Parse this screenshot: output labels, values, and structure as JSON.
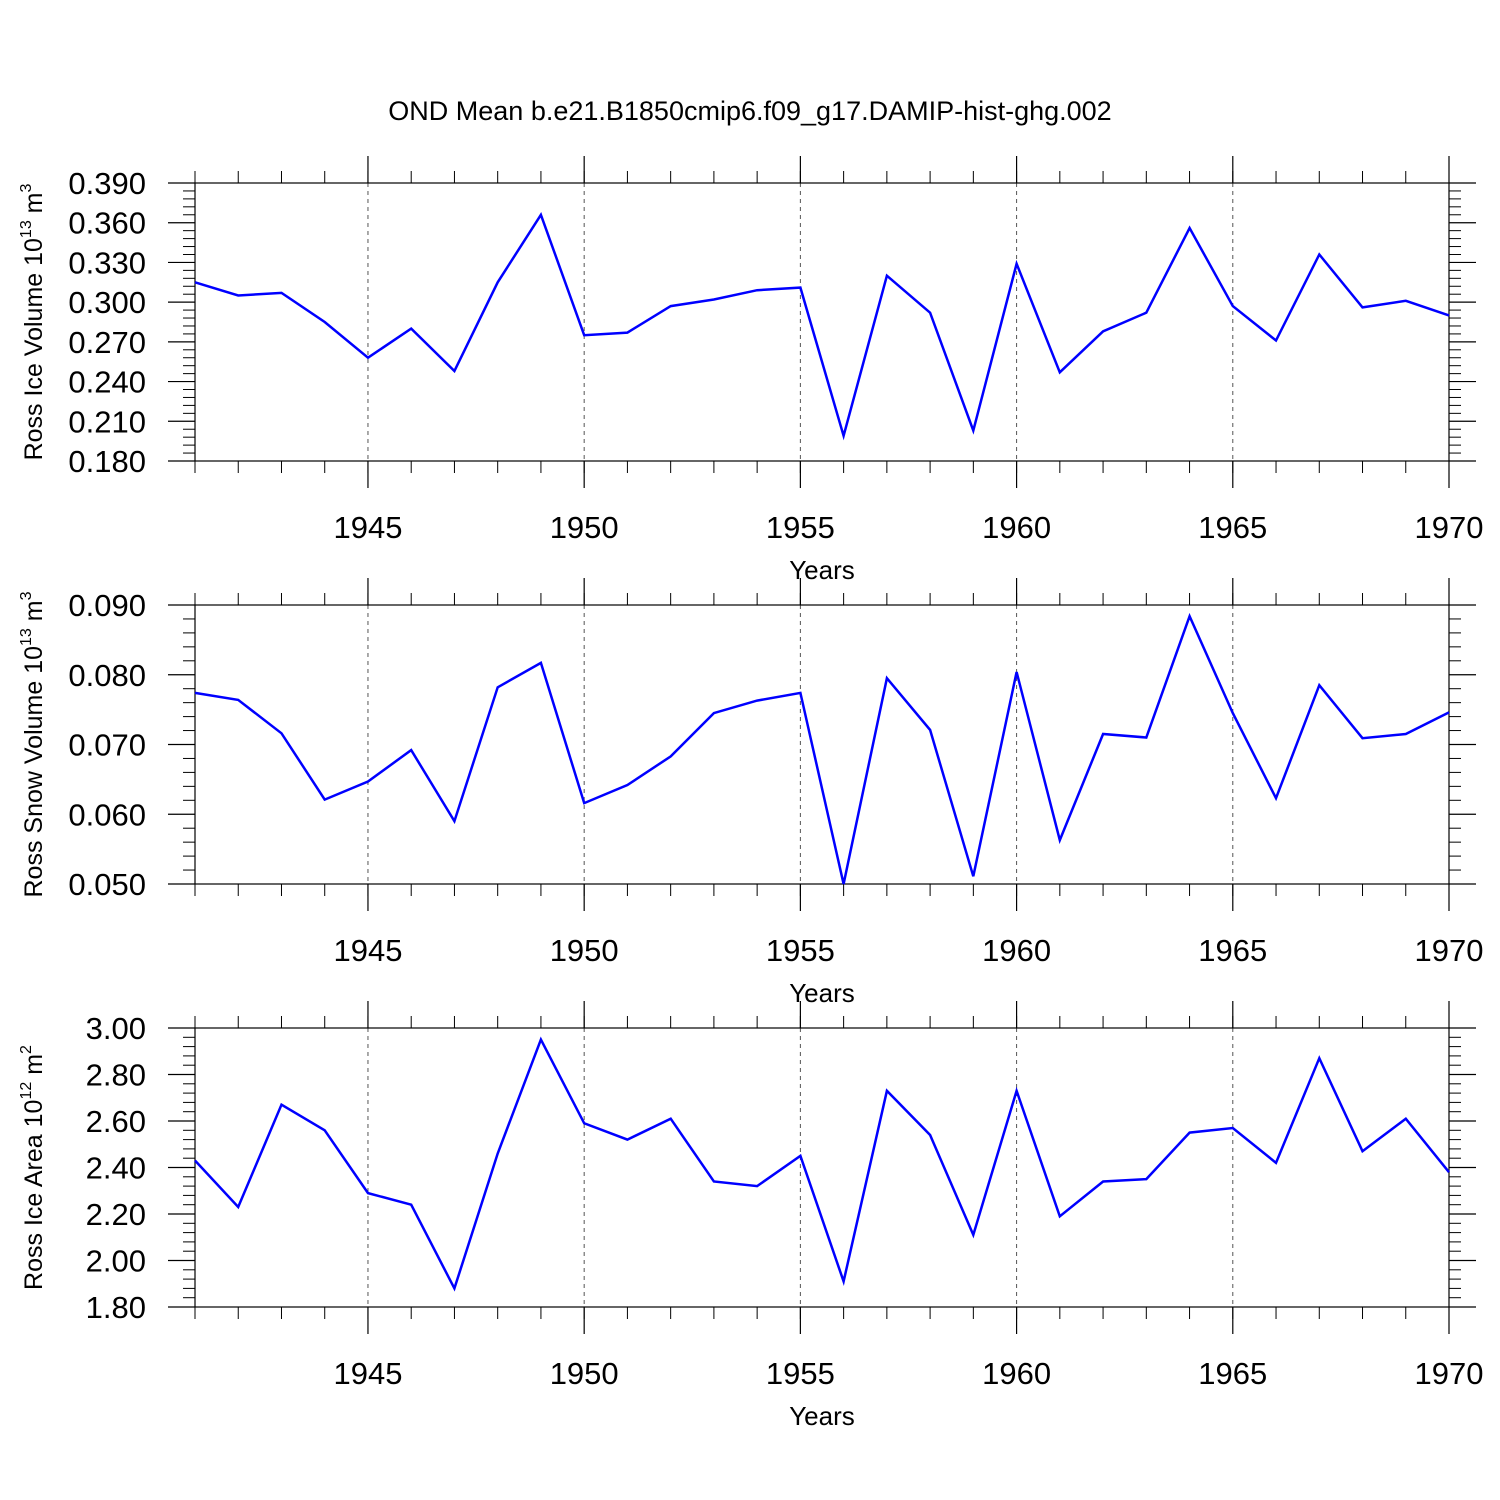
{
  "figure_title": "OND Mean b.e21.B1850cmip6.f09_g17.DAMIP-hist-ghg.002",
  "chart_data": [
    {
      "type": "line",
      "title": "OND Mean b.e21.B1850cmip6.f09_g17.DAMIP-hist-ghg.002",
      "xlabel": "Years",
      "ylabel": "Ross Ice Volume 10",
      "ylabel_exp": "13",
      "ylabel_unit": " m",
      "ylabel_unit_exp": "3",
      "xlim": [
        1941,
        1970
      ],
      "ylim": [
        0.18,
        0.39
      ],
      "yticks": [
        "0.180",
        "0.210",
        "0.240",
        "0.270",
        "0.300",
        "0.330",
        "0.360",
        "0.390"
      ],
      "xticks": [
        "1945",
        "1950",
        "1955",
        "1960",
        "1965",
        "1970"
      ],
      "grid": "vertical dashed at major x ticks",
      "line_color": "#0000ff",
      "x": [
        1941,
        1942,
        1943,
        1944,
        1945,
        1946,
        1947,
        1948,
        1949,
        1950,
        1951,
        1952,
        1953,
        1954,
        1955,
        1956,
        1957,
        1958,
        1959,
        1960,
        1961,
        1962,
        1963,
        1964,
        1965,
        1966,
        1967,
        1968,
        1969,
        1970
      ],
      "values": [
        0.315,
        0.305,
        0.307,
        0.285,
        0.258,
        0.28,
        0.248,
        0.315,
        0.366,
        0.275,
        0.277,
        0.297,
        0.302,
        0.309,
        0.311,
        0.199,
        0.32,
        0.292,
        0.203,
        0.329,
        0.247,
        0.278,
        0.292,
        0.356,
        0.297,
        0.271,
        0.336,
        0.296,
        0.301,
        0.29
      ]
    },
    {
      "type": "line",
      "xlabel": "Years",
      "ylabel": "Ross Snow Volume 10",
      "ylabel_exp": "13",
      "ylabel_unit": " m",
      "ylabel_unit_exp": "3",
      "xlim": [
        1941,
        1970
      ],
      "ylim": [
        0.05,
        0.09
      ],
      "yticks": [
        "0.050",
        "0.060",
        "0.070",
        "0.080",
        "0.090"
      ],
      "xticks": [
        "1945",
        "1950",
        "1955",
        "1960",
        "1965",
        "1970"
      ],
      "grid": "vertical dashed at major x ticks",
      "line_color": "#0000ff",
      "x": [
        1941,
        1942,
        1943,
        1944,
        1945,
        1946,
        1947,
        1948,
        1949,
        1950,
        1951,
        1952,
        1953,
        1954,
        1955,
        1956,
        1957,
        1958,
        1959,
        1960,
        1961,
        1962,
        1963,
        1964,
        1965,
        1966,
        1967,
        1968,
        1969,
        1970
      ],
      "values": [
        0.0774,
        0.0764,
        0.0716,
        0.0621,
        0.0647,
        0.0692,
        0.059,
        0.0782,
        0.0817,
        0.0616,
        0.0642,
        0.0683,
        0.0745,
        0.0763,
        0.0774,
        0.05,
        0.0795,
        0.0721,
        0.0511,
        0.0804,
        0.0563,
        0.0715,
        0.071,
        0.0884,
        0.0745,
        0.0623,
        0.0785,
        0.0709,
        0.0715,
        0.0746
      ]
    },
    {
      "type": "line",
      "xlabel": "Years",
      "ylabel": "Ross Ice Area 10",
      "ylabel_exp": "12",
      "ylabel_unit": " m",
      "ylabel_unit_exp": "2",
      "xlim": [
        1941,
        1970
      ],
      "ylim": [
        1.8,
        3.0
      ],
      "yticks": [
        "1.80",
        "2.00",
        "2.20",
        "2.40",
        "2.60",
        "2.80",
        "3.00"
      ],
      "xticks": [
        "1945",
        "1950",
        "1955",
        "1960",
        "1965",
        "1970"
      ],
      "grid": "vertical dashed at major x ticks",
      "line_color": "#0000ff",
      "x": [
        1941,
        1942,
        1943,
        1944,
        1945,
        1946,
        1947,
        1948,
        1949,
        1950,
        1951,
        1952,
        1953,
        1954,
        1955,
        1956,
        1957,
        1958,
        1959,
        1960,
        1961,
        1962,
        1963,
        1964,
        1965,
        1966,
        1967,
        1968,
        1969,
        1970
      ],
      "values": [
        2.43,
        2.23,
        2.67,
        2.56,
        2.29,
        2.24,
        1.88,
        2.46,
        2.95,
        2.59,
        2.52,
        2.61,
        2.34,
        2.32,
        2.45,
        1.91,
        2.73,
        2.54,
        2.11,
        2.73,
        2.19,
        2.34,
        2.35,
        2.55,
        2.57,
        2.42,
        2.87,
        2.47,
        2.61,
        2.38
      ]
    }
  ]
}
